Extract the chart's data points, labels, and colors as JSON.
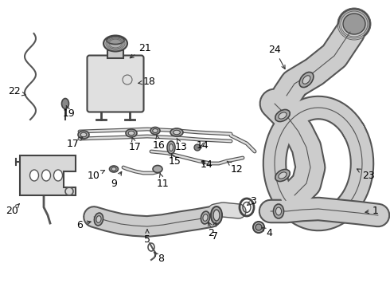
{
  "title": "",
  "bg_color": "#ffffff",
  "line_color": "#555555",
  "label_color": "#000000",
  "fig_width": 4.9,
  "fig_height": 3.6,
  "dpi": 100,
  "xlim": [
    0,
    490
  ],
  "ylim": [
    0,
    360
  ],
  "font_size": 9
}
